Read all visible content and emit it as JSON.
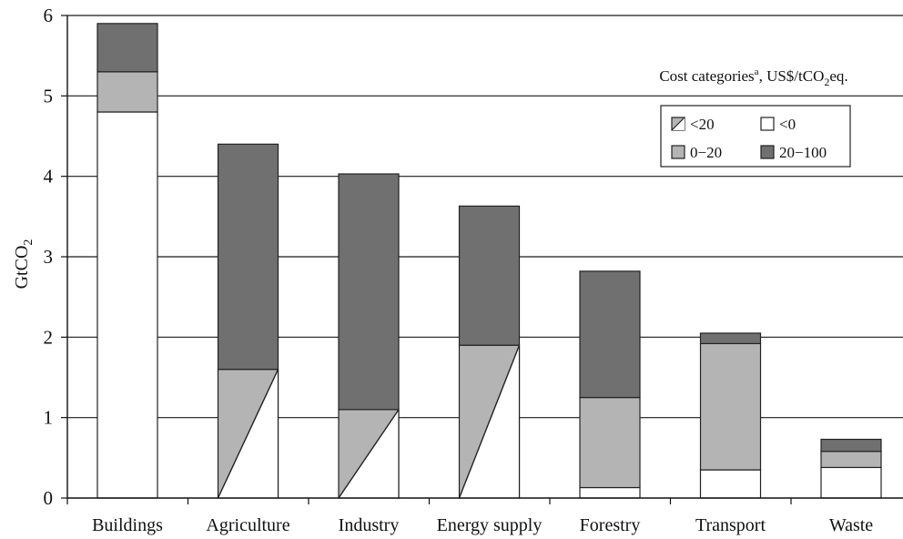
{
  "chart_data": {
    "type": "bar",
    "stacked": true,
    "ylabel": "GtCO",
    "ylabel_sub": "2",
    "ylim": [
      0,
      6
    ],
    "yticks": [
      "0",
      "1",
      "2",
      "3",
      "4",
      "5",
      "6"
    ],
    "grid": true,
    "categories": [
      "Buildings",
      "Agriculture",
      "Industry",
      "Energy supply",
      "Forestry",
      "Transport",
      "Waste"
    ],
    "legend_title": {
      "pre": "Cost categories",
      "sup": "a",
      "mid": ", US$/tCO",
      "sub": "2",
      "post": "eq."
    },
    "legend_position": "top-right",
    "legend": [
      {
        "key": "lt20",
        "label": "<20"
      },
      {
        "key": "lt0",
        "label": "<0"
      },
      {
        "key": "s0_20",
        "label": "0−20"
      },
      {
        "key": "s20_100",
        "label": "20−100"
      }
    ],
    "colors": {
      "lt0": "#ffffff",
      "s0_20": "#b4b4b4",
      "s20_100": "#707070",
      "outline": "#222222",
      "grid": "#1a1a1a"
    },
    "series": [
      {
        "name": "<0",
        "key": "lt0",
        "values": [
          4.8,
          null,
          null,
          null,
          0.13,
          0.35,
          0.38
        ]
      },
      {
        "name": "0−20",
        "key": "s0_20",
        "values": [
          0.5,
          null,
          null,
          null,
          1.12,
          1.57,
          0.2
        ]
      },
      {
        "name": "<20",
        "key": "lt20",
        "values": [
          null,
          1.6,
          1.1,
          1.9,
          null,
          null,
          null
        ]
      },
      {
        "name": "20−100",
        "key": "s20_100",
        "values": [
          0.6,
          2.8,
          2.93,
          1.73,
          1.57,
          0.13,
          0.15
        ]
      }
    ],
    "totals": [
      5.9,
      4.4,
      4.03,
      3.63,
      2.82,
      2.05,
      0.73
    ]
  }
}
